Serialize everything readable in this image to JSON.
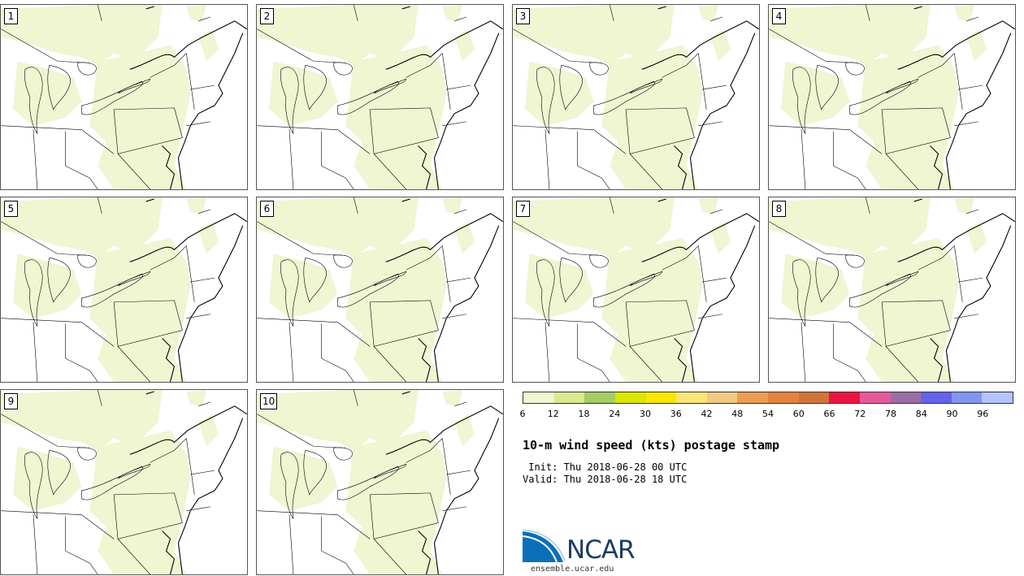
{
  "panels": [
    {
      "label": "1"
    },
    {
      "label": "2"
    },
    {
      "label": "3"
    },
    {
      "label": "4"
    },
    {
      "label": "5"
    },
    {
      "label": "6"
    },
    {
      "label": "7"
    },
    {
      "label": "8"
    },
    {
      "label": "9"
    },
    {
      "label": "10"
    }
  ],
  "colorbar": {
    "colors": [
      "#f0f5d2",
      "#d9eb91",
      "#a5cd64",
      "#dce600",
      "#fae600",
      "#fae678",
      "#f0c882",
      "#eb9e50",
      "#e6823c",
      "#d2733c",
      "#eb1441",
      "#e65a9b",
      "#9b6ea5",
      "#6464eb",
      "#8296f0",
      "#b4c3fa"
    ],
    "ticks": [
      "6",
      "12",
      "18",
      "24",
      "30",
      "36",
      "42",
      "48",
      "54",
      "60",
      "66",
      "72",
      "78",
      "84",
      "90",
      "96"
    ]
  },
  "title": "10-m wind speed (kts) postage stamp",
  "init": " Init: Thu 2018-06-28 00 UTC",
  "valid": "Valid: Thu 2018-06-28 18 UTC",
  "logo": {
    "text": "NCAR",
    "colors": {
      "blue": "#0b6fb8",
      "navy": "#1b3d63"
    }
  },
  "url": "ensemble.ucar.edu",
  "map_style": {
    "land_fill": "#f0f5d2",
    "lines": "#000000"
  }
}
